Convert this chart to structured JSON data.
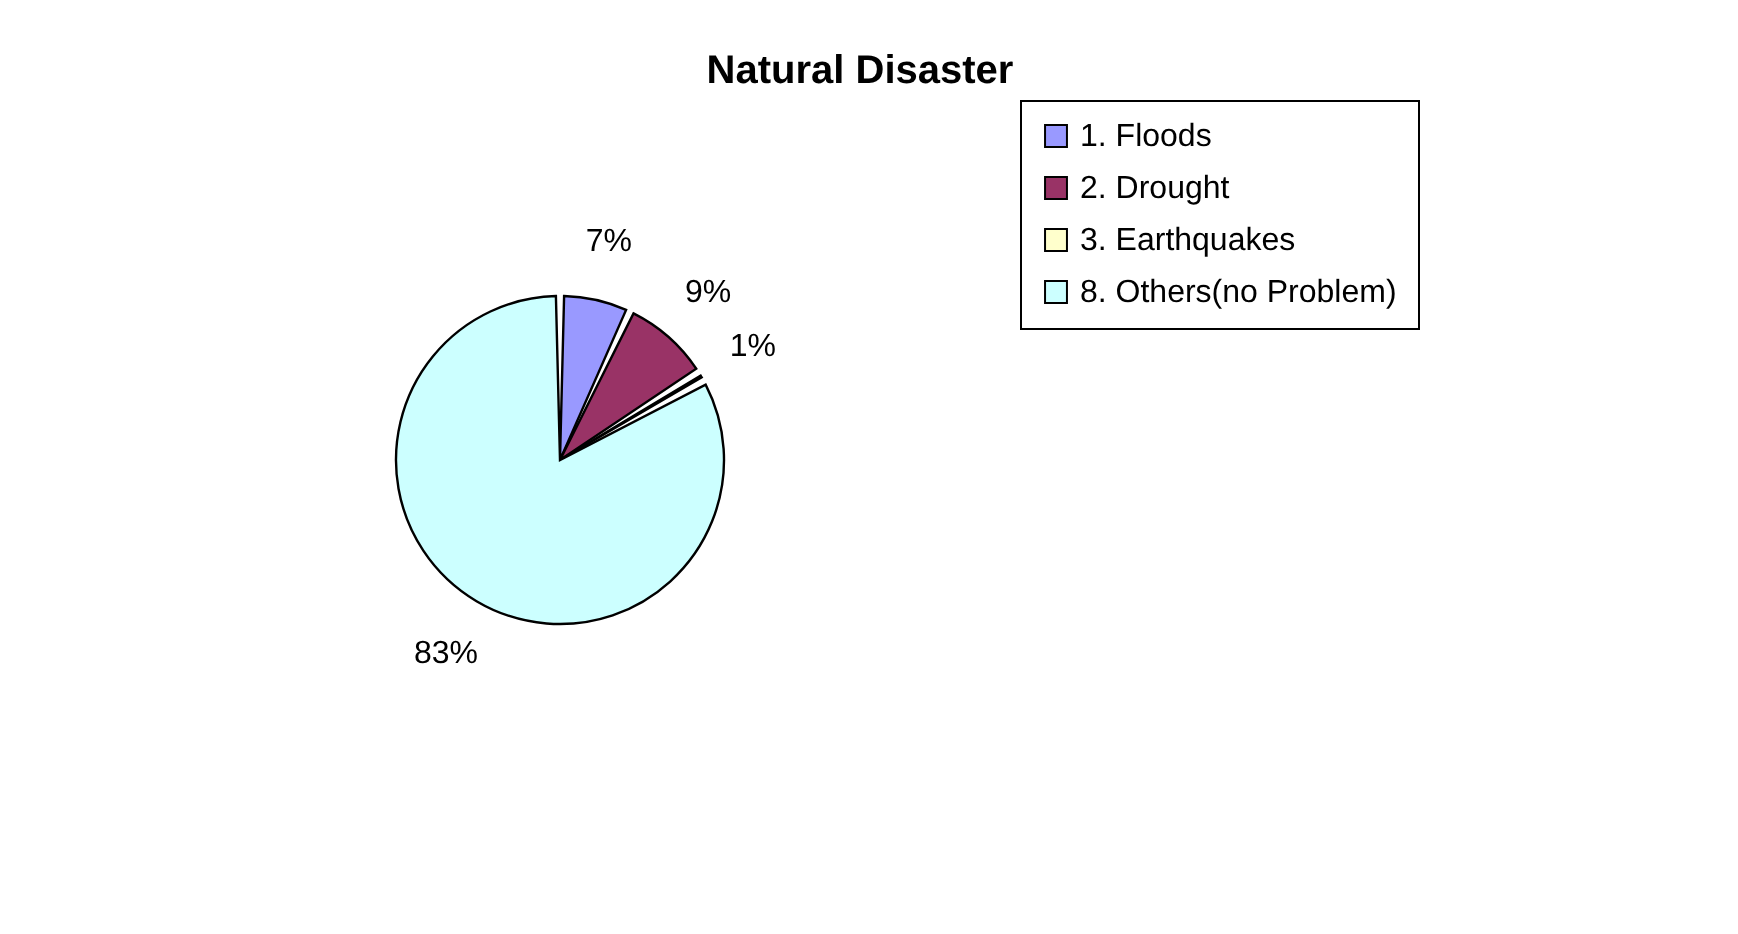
{
  "chart_data": {
    "type": "pie",
    "title": "Natural Disaster",
    "categories": [
      "1.      Floods",
      "2.      Drought",
      "3.      Earthquakes",
      "8. Others(no Problem)"
    ],
    "values": [
      7,
      9,
      1,
      83
    ],
    "colors": [
      "#9999ff",
      "#993366",
      "#ffffcc",
      "#ccffff"
    ],
    "value_labels": [
      "7%",
      "9%",
      "1%",
      "83%"
    ],
    "legend": "right"
  }
}
